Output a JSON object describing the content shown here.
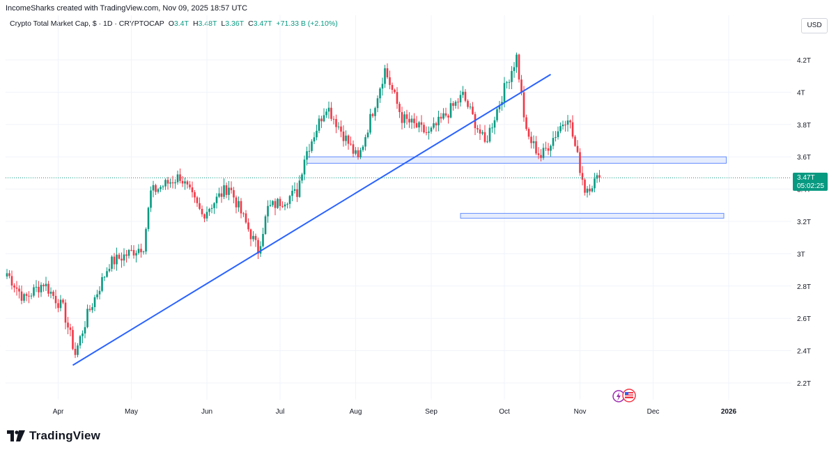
{
  "header": {
    "created_by": "IncomeSharks created with TradingView.com, Nov 09, 2025 18:57 UTC"
  },
  "legend": {
    "symbol": "Crypto Total Market Cap, $ · 1D · CRYPTOCAP",
    "open_label": "O",
    "open": "3.4T",
    "high_label": "H",
    "high": "3.48T",
    "low_label": "L",
    "low": "3.36T",
    "close_label": "C",
    "close": "3.47T",
    "change": "+71.33 B (+2.10%)"
  },
  "currency_button": "USD",
  "price_tag": {
    "price": "3.47T",
    "countdown": "05:02:25"
  },
  "brand": {
    "name": "TradingView"
  },
  "colors": {
    "up": "#089981",
    "down": "#f23645",
    "trendline": "#2962ff",
    "zone_fill": "#e3ebfd",
    "zone_stroke": "#2962ff"
  },
  "icons": [
    "lightning-event-icon",
    "us-flag-event-icon"
  ],
  "chart_data": {
    "type": "candlestick",
    "title": "Crypto Total Market Cap, $ · 1D · CRYPTOCAP",
    "ylim": [
      2.1,
      4.35
    ],
    "y_ticks": [
      "2.2T",
      "2.4T",
      "2.6T",
      "2.8T",
      "3T",
      "3.2T",
      "3.4T",
      "3.6T",
      "3.8T",
      "4T",
      "4.2T"
    ],
    "y_tick_values": [
      2.2,
      2.4,
      2.6,
      2.8,
      3.0,
      3.2,
      3.4,
      3.6,
      3.8,
      4.0,
      4.2
    ],
    "x_ticks": [
      "Apr",
      "May",
      "Jun",
      "Jul",
      "Aug",
      "Sep",
      "Oct",
      "Nov",
      "Dec",
      "2026"
    ],
    "x_tick_dates": [
      "2025-04-01",
      "2025-05-01",
      "2025-06-01",
      "2025-07-01",
      "2025-08-01",
      "2025-09-01",
      "2025-10-01",
      "2025-11-01",
      "2025-12-01",
      "2026-01-01"
    ],
    "grid": true,
    "start_date": "2025-03-11",
    "key_closes": [
      [
        "2025-03-11",
        2.88
      ],
      [
        "2025-03-18",
        2.72
      ],
      [
        "2025-03-26",
        2.82
      ],
      [
        "2025-04-03",
        2.66
      ],
      [
        "2025-04-08",
        2.38
      ],
      [
        "2025-04-13",
        2.62
      ],
      [
        "2025-04-22",
        2.94
      ],
      [
        "2025-05-06",
        3.05
      ],
      [
        "2025-05-09",
        3.38
      ],
      [
        "2025-05-21",
        3.48
      ],
      [
        "2025-05-30",
        3.24
      ],
      [
        "2025-06-10",
        3.42
      ],
      [
        "2025-06-22",
        3.02
      ],
      [
        "2025-06-26",
        3.28
      ],
      [
        "2025-07-08",
        3.38
      ],
      [
        "2025-07-11",
        3.6
      ],
      [
        "2025-07-20",
        3.92
      ],
      [
        "2025-08-02",
        3.58
      ],
      [
        "2025-08-13",
        4.14
      ],
      [
        "2025-08-20",
        3.84
      ],
      [
        "2025-08-31",
        3.74
      ],
      [
        "2025-09-14",
        3.98
      ],
      [
        "2025-09-23",
        3.68
      ],
      [
        "2025-10-01",
        4.02
      ],
      [
        "2025-10-06",
        4.22
      ],
      [
        "2025-10-10",
        3.74
      ],
      [
        "2025-10-16",
        3.6
      ],
      [
        "2025-10-27",
        3.86
      ],
      [
        "2025-11-03",
        3.4
      ],
      [
        "2025-11-09",
        3.47
      ]
    ],
    "trendline": {
      "from": [
        "2025-04-07",
        2.31
      ],
      "to": [
        "2025-10-20",
        4.11
      ]
    },
    "zones": [
      {
        "from": "2025-07-12",
        "to": "2025-12-31",
        "low": 3.56,
        "high": 3.6
      },
      {
        "from": "2025-09-13",
        "to": "2025-12-30",
        "low": 3.22,
        "high": 3.25
      }
    ],
    "last_price": 3.47
  }
}
